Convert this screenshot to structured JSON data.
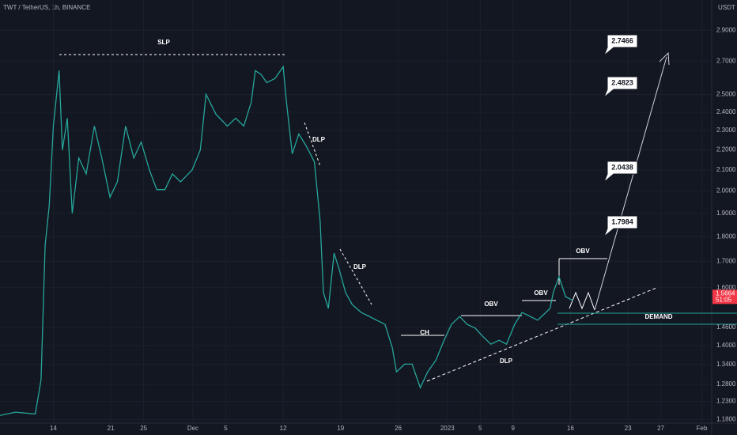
{
  "chart_data": {
    "type": "line",
    "title": "TWT / TetherUS, 1h, BINANCE",
    "y_unit": "USDT",
    "x": [
      7.5,
      9.4,
      11.8,
      12.5,
      13.0,
      13.5,
      14.0,
      14.7,
      15.1,
      15.7,
      16.3,
      17.1,
      18.0,
      19.0,
      19.9,
      20.9,
      21.8,
      22.8,
      23.8,
      24.7,
      25.7,
      26.6,
      27.6,
      28.5,
      29.5,
      30.9,
      31.9,
      32.6,
      33.8,
      35.2,
      36.2,
      37.2,
      38.1,
      38.6,
      39.3,
      40.0,
      41.0,
      42.0,
      42.4,
      43.1,
      43.9,
      44.8,
      45.8,
      46.5,
      46.9,
      47.5,
      48.2,
      48.8,
      49.6,
      50.4,
      51.5,
      52.5,
      53.4,
      54.4,
      55.3,
      55.8,
      56.8,
      57.7,
      58.7,
      59.6,
      60.6,
      61.6,
      62.5,
      63.5,
      64.4,
      65.4,
      66.3,
      67.3,
      68.3,
      69.2,
      70.2,
      71.1,
      72.1,
      73.0,
      74.0,
      74.5,
      74.9,
      75.6,
      76.4,
      77.3
    ],
    "values": [
      1.191,
      1.2,
      1.195,
      1.293,
      1.765,
      1.935,
      2.324,
      2.642,
      2.199,
      2.367,
      1.9,
      2.159,
      2.081,
      2.324,
      2.159,
      1.972,
      2.043,
      2.324,
      2.159,
      2.24,
      2.1,
      2.007,
      2.007,
      2.081,
      2.043,
      2.1,
      2.199,
      2.501,
      2.389,
      2.324,
      2.367,
      2.324,
      2.455,
      2.642,
      2.618,
      2.57,
      2.594,
      2.666,
      2.455,
      2.18,
      2.282,
      2.22,
      2.14,
      1.865,
      1.582,
      1.525,
      1.733,
      1.671,
      1.582,
      1.539,
      1.511,
      1.497,
      1.484,
      1.47,
      1.392,
      1.317,
      1.341,
      1.341,
      1.27,
      1.317,
      1.353,
      1.417,
      1.47,
      1.497,
      1.47,
      1.457,
      1.43,
      1.404,
      1.417,
      1.404,
      1.47,
      1.511,
      1.497,
      1.484,
      1.511,
      1.525,
      1.582,
      1.641,
      1.567,
      1.553
    ],
    "color": "#26a69a",
    "log_scale": true,
    "xlim": [
      7.5,
      94.2
    ],
    "xticks": [
      {
        "value": 14,
        "label": "14"
      },
      {
        "value": 21,
        "label": "21"
      },
      {
        "value": 25,
        "label": "25"
      },
      {
        "value": 31,
        "label": "Dec"
      },
      {
        "value": 35,
        "label": "5"
      },
      {
        "value": 42,
        "label": "12"
      },
      {
        "value": 49,
        "label": "19"
      },
      {
        "value": 56,
        "label": "26"
      },
      {
        "value": 62,
        "label": "2023"
      },
      {
        "value": 66,
        "label": "5"
      },
      {
        "value": 70,
        "label": "9"
      },
      {
        "value": 77,
        "label": "16"
      },
      {
        "value": 84,
        "label": "23"
      },
      {
        "value": 88,
        "label": "27"
      },
      {
        "value": 93,
        "label": "Feb"
      }
    ],
    "ylim": [
      1.17,
      3.11
    ],
    "yticks": [
      {
        "value": 2.9,
        "label": "2.9000"
      },
      {
        "value": 2.7,
        "label": "2.7000"
      },
      {
        "value": 2.5,
        "label": "2.5000"
      },
      {
        "value": 2.4,
        "label": "2.4000"
      },
      {
        "value": 2.3,
        "label": "2.3000"
      },
      {
        "value": 2.2,
        "label": "2.2000"
      },
      {
        "value": 2.1,
        "label": "2.1000"
      },
      {
        "value": 2,
        "label": "2.0000"
      },
      {
        "value": 1.9,
        "label": "1.9000"
      },
      {
        "value": 1.8,
        "label": "1.8000"
      },
      {
        "value": 1.7,
        "label": "1.7000"
      },
      {
        "value": 1.6,
        "label": "1.6000"
      },
      {
        "value": 1.46,
        "label": "1.4600"
      },
      {
        "value": 1.4,
        "label": "1.4000"
      },
      {
        "value": 1.34,
        "label": "1.3400"
      },
      {
        "value": 1.28,
        "label": "1.2800"
      },
      {
        "value": 1.23,
        "label": "1.2300"
      },
      {
        "value": 1.18,
        "label": "1.1800"
      }
    ],
    "grid": true,
    "last_price": 1.5664,
    "countdown": "51:05",
    "annotations": [
      "SLP",
      "DLP",
      "DLP",
      "CH",
      "OBV",
      "OBV",
      "OBV",
      "DLP",
      "DEMAND"
    ],
    "targets": [
      "2.7466",
      "2.4823",
      "2.0438",
      "1.7984"
    ]
  }
}
